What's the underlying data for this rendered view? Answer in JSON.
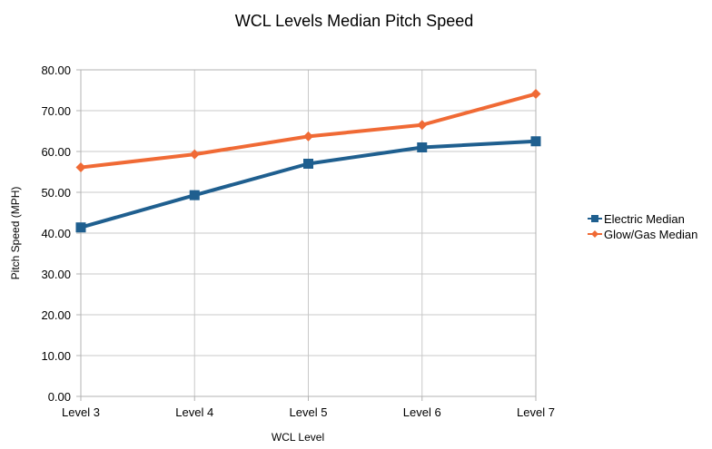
{
  "chart_data": {
    "type": "line",
    "title": "WCL Levels Median Pitch Speed",
    "xlabel": "WCL Level",
    "ylabel": "Pitch Speed (MPH)",
    "categories": [
      "Level 3",
      "Level 4",
      "Level 5",
      "Level 6",
      "Level 7"
    ],
    "ylim": [
      0,
      80
    ],
    "yticks": [
      "0.00",
      "10.00",
      "20.00",
      "30.00",
      "40.00",
      "50.00",
      "60.00",
      "70.00",
      "80.00"
    ],
    "grid": true,
    "legend_position": "right",
    "series": [
      {
        "name": "Electric Median",
        "color": "#1f5f8f",
        "marker": "square",
        "values": [
          41.4,
          49.3,
          57.0,
          61.0,
          62.5
        ]
      },
      {
        "name": "Glow/Gas Median",
        "color": "#f06a35",
        "marker": "diamond",
        "values": [
          56.1,
          59.3,
          63.7,
          66.5,
          74.1
        ]
      }
    ]
  }
}
